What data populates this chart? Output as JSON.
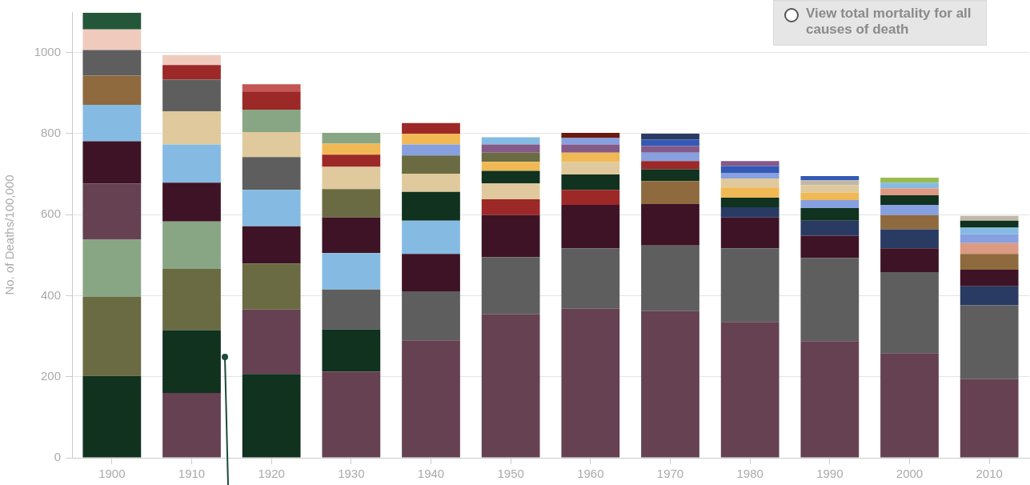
{
  "chart_data": {
    "type": "bar",
    "stacked": true,
    "ylabel": "No. of Deaths/100,000",
    "categories": [
      "1900",
      "1910",
      "1920",
      "1930",
      "1940",
      "1950",
      "1960",
      "1970",
      "1980",
      "1990",
      "2000",
      "2010"
    ],
    "series": [
      {
        "colors": [
          "#10321f",
          "#654152",
          "#10321f",
          "#654152",
          "#654152",
          "#654152",
          "#654152",
          "#654152",
          "#654152",
          "#654152",
          "#654152",
          "#654152"
        ],
        "values": [
          202,
          160,
          207,
          213,
          290,
          354,
          368,
          362,
          335,
          288,
          258,
          194
        ]
      },
      {
        "colors": [
          "#6a6b42",
          "#10321f",
          "#654152",
          "#10321f",
          "#5e5e5e",
          "#5e5e5e",
          "#5e5e5e",
          "#5e5e5e",
          "#5e5e5e",
          "#5e5e5e",
          "#5e5e5e",
          "#5e5e5e"
        ],
        "values": [
          195,
          155,
          159,
          104,
          121,
          141,
          149,
          162,
          182,
          205,
          200,
          182
        ]
      },
      {
        "colors": [
          "#88a683",
          "#6a6b42",
          "#6a6b42",
          "#5e5e5e",
          "#3e1326",
          "#3e1326",
          "#3e1326",
          "#3e1326",
          "#3e1326",
          "#3e1326",
          "#3e1326",
          "#293a63"
        ],
        "values": [
          141,
          151,
          113,
          98,
          92,
          104,
          107,
          102,
          76,
          55,
          59,
          47
        ]
      },
      {
        "colors": [
          "#654152",
          "#88a683",
          "#3e1326",
          "#85bbe3",
          "#85bbe3",
          "#9c2828",
          "#9c2828",
          "#8e6a3e",
          "#293a63",
          "#293a63",
          "#293a63",
          "#3e1326"
        ],
        "values": [
          139,
          117,
          92,
          90,
          82,
          39,
          37,
          57,
          25,
          37,
          47,
          41
        ]
      },
      {
        "colors": [
          "#3e1326",
          "#3e1326",
          "#85bbe3",
          "#3e1326",
          "#10321f",
          "#e0c99c",
          "#10321f",
          "#10321f",
          "#10321f",
          "#10321f",
          "#8e6a3e",
          "#8e6a3e"
        ],
        "values": [
          104,
          96,
          90,
          88,
          71,
          39,
          38,
          29,
          24,
          31,
          35,
          39
        ]
      },
      {
        "colors": [
          "#85bbe3",
          "#85bbe3",
          "#5e5e5e",
          "#6a6b42",
          "#e0c99c",
          "#10321f",
          "#e0c99c",
          "#9c2828",
          "#f0b955",
          "#86a0e0",
          "#86a0e0",
          "#dc9a82"
        ],
        "values": [
          90,
          94,
          81,
          70,
          45,
          31,
          31,
          20,
          25,
          20,
          25,
          27
        ]
      },
      {
        "colors": [
          "#8e6a3e",
          "#e0c99c",
          "#e0c99c",
          "#e0c99c",
          "#6a6b42",
          "#f0b955",
          "#f0b955",
          "#86a0e0",
          "#e0c99c",
          "#f0b955",
          "#10321f",
          "#86a0e0"
        ],
        "values": [
          72,
          82,
          62,
          55,
          45,
          22,
          23,
          21,
          22,
          18,
          24,
          22
        ]
      },
      {
        "colors": [
          "#5e5e5e",
          "#5e5e5e",
          "#88a683",
          "#9c2828",
          "#86a0e0",
          "#6a6b42",
          "#845a88",
          "#845a88",
          "#86a0e0",
          "#e0c99c",
          "#dc9a82",
          "#85bbe3"
        ],
        "values": [
          63,
          78,
          55,
          30,
          27,
          23,
          20,
          16,
          14,
          19,
          17,
          16
        ]
      },
      {
        "colors": [
          "#f0cbbd",
          "#9c2828",
          "#9c2828",
          "#f0b955",
          "#f0b955",
          "#845a88",
          "#86a0e0",
          "#3459b5",
          "#3459b5",
          "#c0b8a8",
          "#85bbe3",
          "#10321f"
        ],
        "values": [
          51,
          36,
          45,
          27,
          27,
          20,
          16,
          16,
          17,
          12,
          14,
          17
        ]
      },
      {
        "colors": [
          "#24573a",
          "#f0cbbd",
          "#c55555",
          "#88a683",
          "#9c2828",
          "#85bbe3",
          "#6b1a10",
          "#293a63",
          "#845a88",
          "#3459b5",
          "#9abc4e",
          "#c0b8a8"
        ],
        "values": [
          41,
          25,
          18,
          27,
          26,
          18,
          13,
          15,
          12,
          10,
          12,
          12
        ]
      }
    ],
    "ylim": [
      0,
      1100
    ],
    "yticks": [
      0,
      200,
      400,
      600,
      800,
      1000
    ],
    "grid": "y",
    "annotations": [
      "View total mortality for all causes of death"
    ]
  }
}
